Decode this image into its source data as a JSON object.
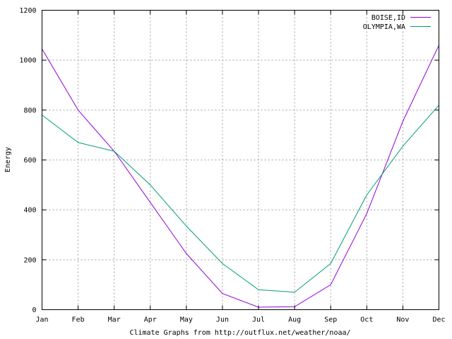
{
  "chart_data": {
    "type": "line",
    "title": "",
    "xlabel": "Climate Graphs from http://outflux.net/weather/noaa/",
    "ylabel": "Energy",
    "categories": [
      "Jan",
      "Feb",
      "Mar",
      "Apr",
      "May",
      "Jun",
      "Jul",
      "Aug",
      "Sep",
      "Oct",
      "Nov",
      "Dec"
    ],
    "ylim": [
      0,
      1200
    ],
    "yticks": [
      "0",
      "200",
      "400",
      "600",
      "800",
      "1000",
      "1200"
    ],
    "grid": true,
    "legend_position": "top-right",
    "series": [
      {
        "name": "BOISE,ID",
        "color": "#9400d3",
        "values": [
          1045,
          800,
          635,
          430,
          225,
          65,
          10,
          12,
          100,
          385,
          755,
          1060
        ]
      },
      {
        "name": "OLYMPIA,WA",
        "color": "#009e73",
        "values": [
          780,
          670,
          635,
          500,
          335,
          185,
          80,
          70,
          185,
          460,
          655,
          820
        ]
      }
    ]
  }
}
